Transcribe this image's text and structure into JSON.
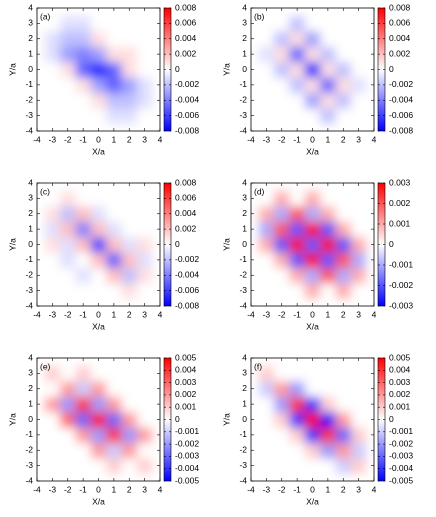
{
  "chart_data": [
    {
      "type": "heatmap",
      "label": "(a)",
      "xlabel": "X/a",
      "ylabel": "Y/a",
      "x": [
        -4,
        -3,
        -2,
        -1,
        0,
        1,
        2,
        3,
        4
      ],
      "y": [
        -4,
        -3,
        -2,
        -1,
        0,
        1,
        2,
        3,
        4
      ],
      "z": [
        [
          0,
          0,
          0,
          0,
          0,
          0,
          0,
          0,
          0
        ],
        [
          0,
          0,
          0,
          0,
          0,
          -0.001,
          -0.001,
          0,
          0
        ],
        [
          0,
          0,
          0,
          0,
          0.001,
          -0.002,
          -0.002,
          -0.001,
          0
        ],
        [
          0,
          0,
          0,
          0.001,
          -0.003,
          -0.005,
          -0.003,
          -0.001,
          0
        ],
        [
          0,
          0,
          0.001,
          -0.005,
          -0.007,
          -0.005,
          0.001,
          0,
          0
        ],
        [
          0,
          -0.001,
          -0.003,
          -0.004,
          -0.003,
          0.001,
          0.001,
          0,
          0
        ],
        [
          0,
          -0.001,
          -0.002,
          -0.002,
          0.001,
          0,
          0,
          0,
          0
        ],
        [
          0,
          0,
          -0.001,
          -0.001,
          0,
          0,
          0,
          0,
          0
        ],
        [
          0,
          0,
          0,
          0,
          0,
          0,
          0,
          0,
          0
        ]
      ],
      "xlim": [
        -4,
        4
      ],
      "ylim": [
        -4,
        4
      ],
      "xticks": [
        -4,
        -3,
        -2,
        -1,
        0,
        1,
        2,
        3,
        4
      ],
      "yticks": [
        -4,
        -3,
        -2,
        -1,
        0,
        1,
        2,
        3,
        4
      ],
      "zlim": [
        -0.008,
        0.008
      ],
      "zticks": [
        0.008,
        0.006,
        0.004,
        0.002,
        0,
        -0.002,
        -0.004,
        -0.006,
        -0.008
      ],
      "colors": [
        "#0000ff",
        "#ffffff",
        "#ff0000"
      ]
    },
    {
      "type": "heatmap",
      "label": "(b)",
      "xlabel": "X/a",
      "ylabel": "Y/a",
      "x": [
        -4,
        -3,
        -2,
        -1,
        0,
        1,
        2,
        3,
        4
      ],
      "y": [
        -4,
        -3,
        -2,
        -1,
        0,
        1,
        2,
        3,
        4
      ],
      "z": [
        [
          0,
          0,
          0,
          0,
          0,
          0,
          0,
          0,
          0
        ],
        [
          0,
          0,
          0,
          0,
          0,
          -0.002,
          0,
          0,
          0
        ],
        [
          0,
          0,
          0,
          0,
          -0.003,
          0.001,
          -0.002,
          0,
          0
        ],
        [
          0,
          0,
          0,
          -0.002,
          0.001,
          -0.005,
          0.001,
          -0.001,
          0
        ],
        [
          0,
          0,
          -0.002,
          0.001,
          -0.008,
          0.001,
          -0.002,
          0,
          0
        ],
        [
          0,
          -0.001,
          0.001,
          -0.005,
          0.001,
          -0.002,
          0,
          0,
          0
        ],
        [
          0,
          0,
          -0.002,
          0.001,
          -0.003,
          0,
          0,
          0,
          0
        ],
        [
          0,
          0,
          0,
          -0.002,
          0,
          0,
          0,
          0,
          0
        ],
        [
          0,
          0,
          0,
          0,
          0,
          0,
          0,
          0,
          0
        ]
      ],
      "xlim": [
        -4,
        4
      ],
      "ylim": [
        -4,
        4
      ],
      "xticks": [
        -4,
        -3,
        -2,
        -1,
        0,
        1,
        2,
        3,
        4
      ],
      "yticks": [
        -4,
        -3,
        -2,
        -1,
        0,
        1,
        2,
        3,
        4
      ],
      "zlim": [
        -0.008,
        0.008
      ],
      "zticks": [
        0.008,
        0.006,
        0.004,
        0.002,
        0,
        -0.002,
        -0.004,
        -0.006,
        -0.008
      ],
      "colors": [
        "#0000ff",
        "#ffffff",
        "#ff0000"
      ]
    },
    {
      "type": "heatmap",
      "label": "(c)",
      "xlabel": "X/a",
      "ylabel": "Y/a",
      "x": [
        -4,
        -3,
        -2,
        -1,
        0,
        1,
        2,
        3,
        4
      ],
      "y": [
        -4,
        -3,
        -2,
        -1,
        0,
        1,
        2,
        3,
        4
      ],
      "z": [
        [
          0,
          0,
          0,
          0,
          0,
          0,
          0,
          0,
          0
        ],
        [
          0,
          0,
          0,
          0,
          0,
          0,
          0.001,
          0,
          0
        ],
        [
          0,
          0,
          0,
          -0.001,
          0,
          0.002,
          -0.002,
          0.001,
          0
        ],
        [
          0,
          0,
          -0.001,
          0,
          0.002,
          -0.005,
          0.002,
          -0.001,
          0
        ],
        [
          0,
          0.001,
          -0.001,
          0.002,
          -0.006,
          0.002,
          -0.001,
          0.001,
          0
        ],
        [
          0,
          -0.001,
          0.002,
          -0.004,
          0.002,
          -0.001,
          0,
          0,
          0
        ],
        [
          0,
          0.001,
          -0.002,
          0.002,
          -0.001,
          0,
          0,
          0,
          0
        ],
        [
          0,
          0,
          0.001,
          0,
          0,
          0,
          0,
          0,
          0
        ],
        [
          0,
          0,
          0,
          0,
          0,
          0,
          0,
          0,
          0
        ]
      ],
      "xlim": [
        -4,
        4
      ],
      "ylim": [
        -4,
        4
      ],
      "xticks": [
        -4,
        -3,
        -2,
        -1,
        0,
        1,
        2,
        3,
        4
      ],
      "yticks": [
        -4,
        -3,
        -2,
        -1,
        0,
        1,
        2,
        3,
        4
      ],
      "zlim": [
        -0.008,
        0.008
      ],
      "zticks": [
        0.008,
        0.006,
        0.004,
        0.002,
        0,
        -0.002,
        -0.004,
        -0.006,
        -0.008
      ],
      "colors": [
        "#0000ff",
        "#ffffff",
        "#ff0000"
      ]
    },
    {
      "type": "heatmap",
      "label": "(d)",
      "xlabel": "X/a",
      "ylabel": "Y/a",
      "x": [
        -4,
        -3,
        -2,
        -1,
        0,
        1,
        2,
        3,
        4
      ],
      "y": [
        -4,
        -3,
        -2,
        -1,
        0,
        1,
        2,
        3,
        4
      ],
      "z": [
        [
          0,
          0,
          0,
          0,
          0,
          0,
          0,
          0,
          0
        ],
        [
          0,
          0,
          0,
          0,
          0.001,
          0,
          0.001,
          0,
          0
        ],
        [
          0,
          0,
          0,
          0.001,
          -0.001,
          0.002,
          -0.001,
          0.001,
          0
        ],
        [
          0,
          0,
          0.001,
          -0.002,
          0.003,
          -0.002,
          0.002,
          -0.001,
          0
        ],
        [
          0,
          0.001,
          -0.002,
          0.003,
          -0.002,
          0.003,
          -0.002,
          0.001,
          0
        ],
        [
          0,
          -0.001,
          0.002,
          -0.002,
          0.003,
          -0.002,
          0.001,
          0,
          0
        ],
        [
          0,
          0.001,
          -0.001,
          0.002,
          -0.001,
          0.001,
          0,
          0,
          0
        ],
        [
          0,
          0,
          0.001,
          0,
          0.001,
          0,
          0,
          0,
          0
        ],
        [
          0,
          0,
          0,
          0,
          0,
          0,
          0,
          0,
          0
        ]
      ],
      "xlim": [
        -4,
        4
      ],
      "ylim": [
        -4,
        4
      ],
      "xticks": [
        -4,
        -3,
        -2,
        -1,
        0,
        1,
        2,
        3,
        4
      ],
      "yticks": [
        -4,
        -3,
        -2,
        -1,
        0,
        1,
        2,
        3,
        4
      ],
      "zlim": [
        -0.003,
        0.003
      ],
      "zticks": [
        0.003,
        0.002,
        0.001,
        0,
        -0.001,
        -0.002,
        -0.003
      ],
      "colors": [
        "#0000ff",
        "#ffffff",
        "#ff0000"
      ]
    },
    {
      "type": "heatmap",
      "label": "(e)",
      "xlabel": "X/a",
      "ylabel": "Y/a",
      "x": [
        -4,
        -3,
        -2,
        -1,
        0,
        1,
        2,
        3,
        4
      ],
      "y": [
        -4,
        -3,
        -2,
        -1,
        0,
        1,
        2,
        3,
        4
      ],
      "z": [
        [
          0,
          0,
          0,
          0,
          0,
          0,
          0,
          0,
          0
        ],
        [
          0,
          0,
          0,
          0,
          0,
          0.001,
          0,
          0.001,
          0
        ],
        [
          0,
          0,
          0,
          0,
          0.002,
          -0.001,
          0.002,
          0,
          0
        ],
        [
          0,
          0,
          0,
          0.002,
          -0.002,
          0.004,
          -0.002,
          0.002,
          0
        ],
        [
          0,
          0,
          0.003,
          -0.003,
          0.005,
          -0.003,
          0.002,
          0,
          0
        ],
        [
          0,
          0.002,
          -0.002,
          0.004,
          -0.002,
          0.002,
          0,
          0,
          0
        ],
        [
          0,
          0,
          0.002,
          -0.001,
          0.002,
          0,
          0,
          0,
          0
        ],
        [
          0,
          0.001,
          0,
          0.001,
          0,
          0,
          0,
          0,
          0
        ],
        [
          0,
          0,
          0,
          0,
          0,
          0,
          0,
          0,
          0
        ]
      ],
      "xlim": [
        -4,
        4
      ],
      "ylim": [
        -4,
        4
      ],
      "xticks": [
        -4,
        -3,
        -2,
        -1,
        0,
        1,
        2,
        3,
        4
      ],
      "yticks": [
        -4,
        -3,
        -2,
        -1,
        0,
        1,
        2,
        3,
        4
      ],
      "zlim": [
        -0.005,
        0.005
      ],
      "zticks": [
        0.005,
        0.004,
        0.003,
        0.002,
        0.001,
        0,
        -0.001,
        -0.002,
        -0.003,
        -0.004,
        -0.005
      ],
      "colors": [
        "#0000ff",
        "#ffffff",
        "#ff0000"
      ]
    },
    {
      "type": "heatmap",
      "label": "(f)",
      "xlabel": "X/a",
      "ylabel": "Y/a",
      "x": [
        -4,
        -3,
        -2,
        -1,
        0,
        1,
        2,
        3,
        4
      ],
      "y": [
        -4,
        -3,
        -2,
        -1,
        0,
        1,
        2,
        3,
        4
      ],
      "z": [
        [
          0,
          0,
          0,
          0,
          0,
          0,
          0,
          0,
          0
        ],
        [
          0,
          0,
          0,
          0,
          0,
          0,
          -0.001,
          0.001,
          0
        ],
        [
          0,
          0,
          0,
          0,
          0.001,
          -0.002,
          0.002,
          -0.001,
          0
        ],
        [
          0,
          0,
          0,
          0.001,
          -0.004,
          0.004,
          -0.003,
          0.001,
          0
        ],
        [
          0,
          0,
          0.001,
          -0.004,
          0.005,
          -0.005,
          0.002,
          0,
          0
        ],
        [
          0,
          0,
          -0.002,
          0.004,
          -0.004,
          0.001,
          0,
          0,
          0
        ],
        [
          0,
          -0.001,
          0.002,
          -0.002,
          0,
          0,
          0,
          0,
          0
        ],
        [
          0,
          0.001,
          0,
          0,
          0,
          0,
          0,
          0,
          0
        ],
        [
          0,
          0,
          0,
          0,
          0,
          0,
          0,
          0,
          0
        ]
      ],
      "xlim": [
        -4,
        4
      ],
      "ylim": [
        -4,
        4
      ],
      "xticks": [
        -4,
        -3,
        -2,
        -1,
        0,
        1,
        2,
        3,
        4
      ],
      "yticks": [
        -4,
        -3,
        -2,
        -1,
        0,
        1,
        2,
        3,
        4
      ],
      "zlim": [
        -0.005,
        0.005
      ],
      "zticks": [
        0.005,
        0.004,
        0.003,
        0.002,
        0.001,
        0,
        -0.001,
        -0.002,
        -0.003,
        -0.004,
        -0.005
      ],
      "colors": [
        "#0000ff",
        "#ffffff",
        "#ff0000"
      ]
    }
  ]
}
